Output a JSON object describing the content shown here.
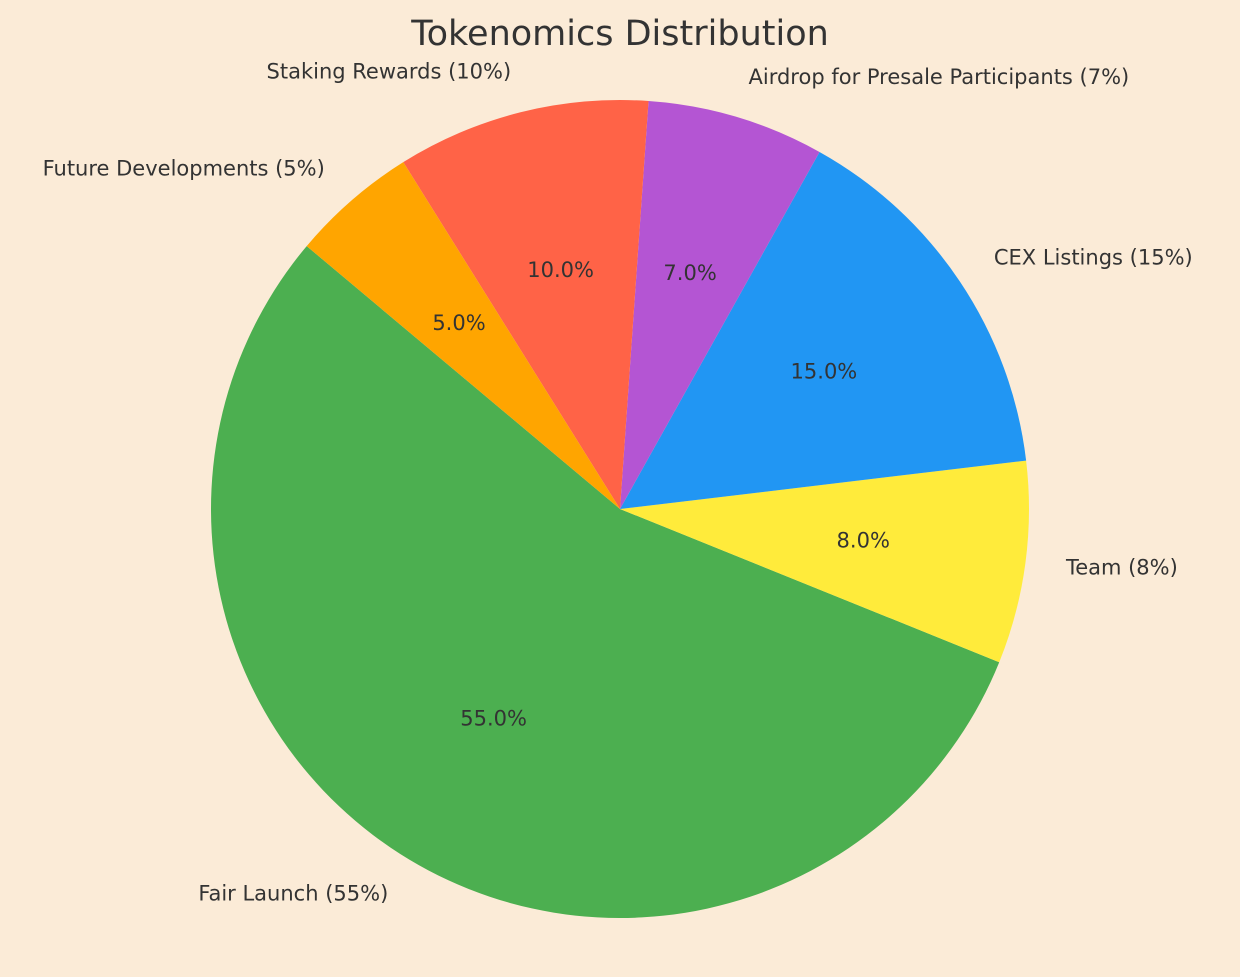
{
  "colors": {
    "background": "#FBEBD7",
    "text": "#333333"
  },
  "chart_data": {
    "type": "pie",
    "title": "Tokenomics Distribution",
    "start_angle_deg": 140,
    "direction": "counterclockwise",
    "slices": [
      {
        "name": "Fair Launch",
        "label": "Fair Launch (55%)",
        "value": 55,
        "pct_label": "55.0%",
        "color": "#4CAF50"
      },
      {
        "name": "Team",
        "label": "Team (8%)",
        "value": 8,
        "pct_label": "8.0%",
        "color": "#FFEB3B"
      },
      {
        "name": "CEX Listings",
        "label": "CEX Listings (15%)",
        "value": 15,
        "pct_label": "15.0%",
        "color": "#2196F3"
      },
      {
        "name": "Airdrop for Presale Participants",
        "label": "Airdrop for Presale Participants (7%)",
        "value": 7,
        "pct_label": "7.0%",
        "color": "#B455D3"
      },
      {
        "name": "Staking Rewards",
        "label": "Staking Rewards (10%)",
        "value": 10,
        "pct_label": "10.0%",
        "color": "#FF6347"
      },
      {
        "name": "Future Developments",
        "label": "Future Developments (5%)",
        "value": 5,
        "pct_label": "5.0%",
        "color": "#FFA500"
      }
    ]
  }
}
